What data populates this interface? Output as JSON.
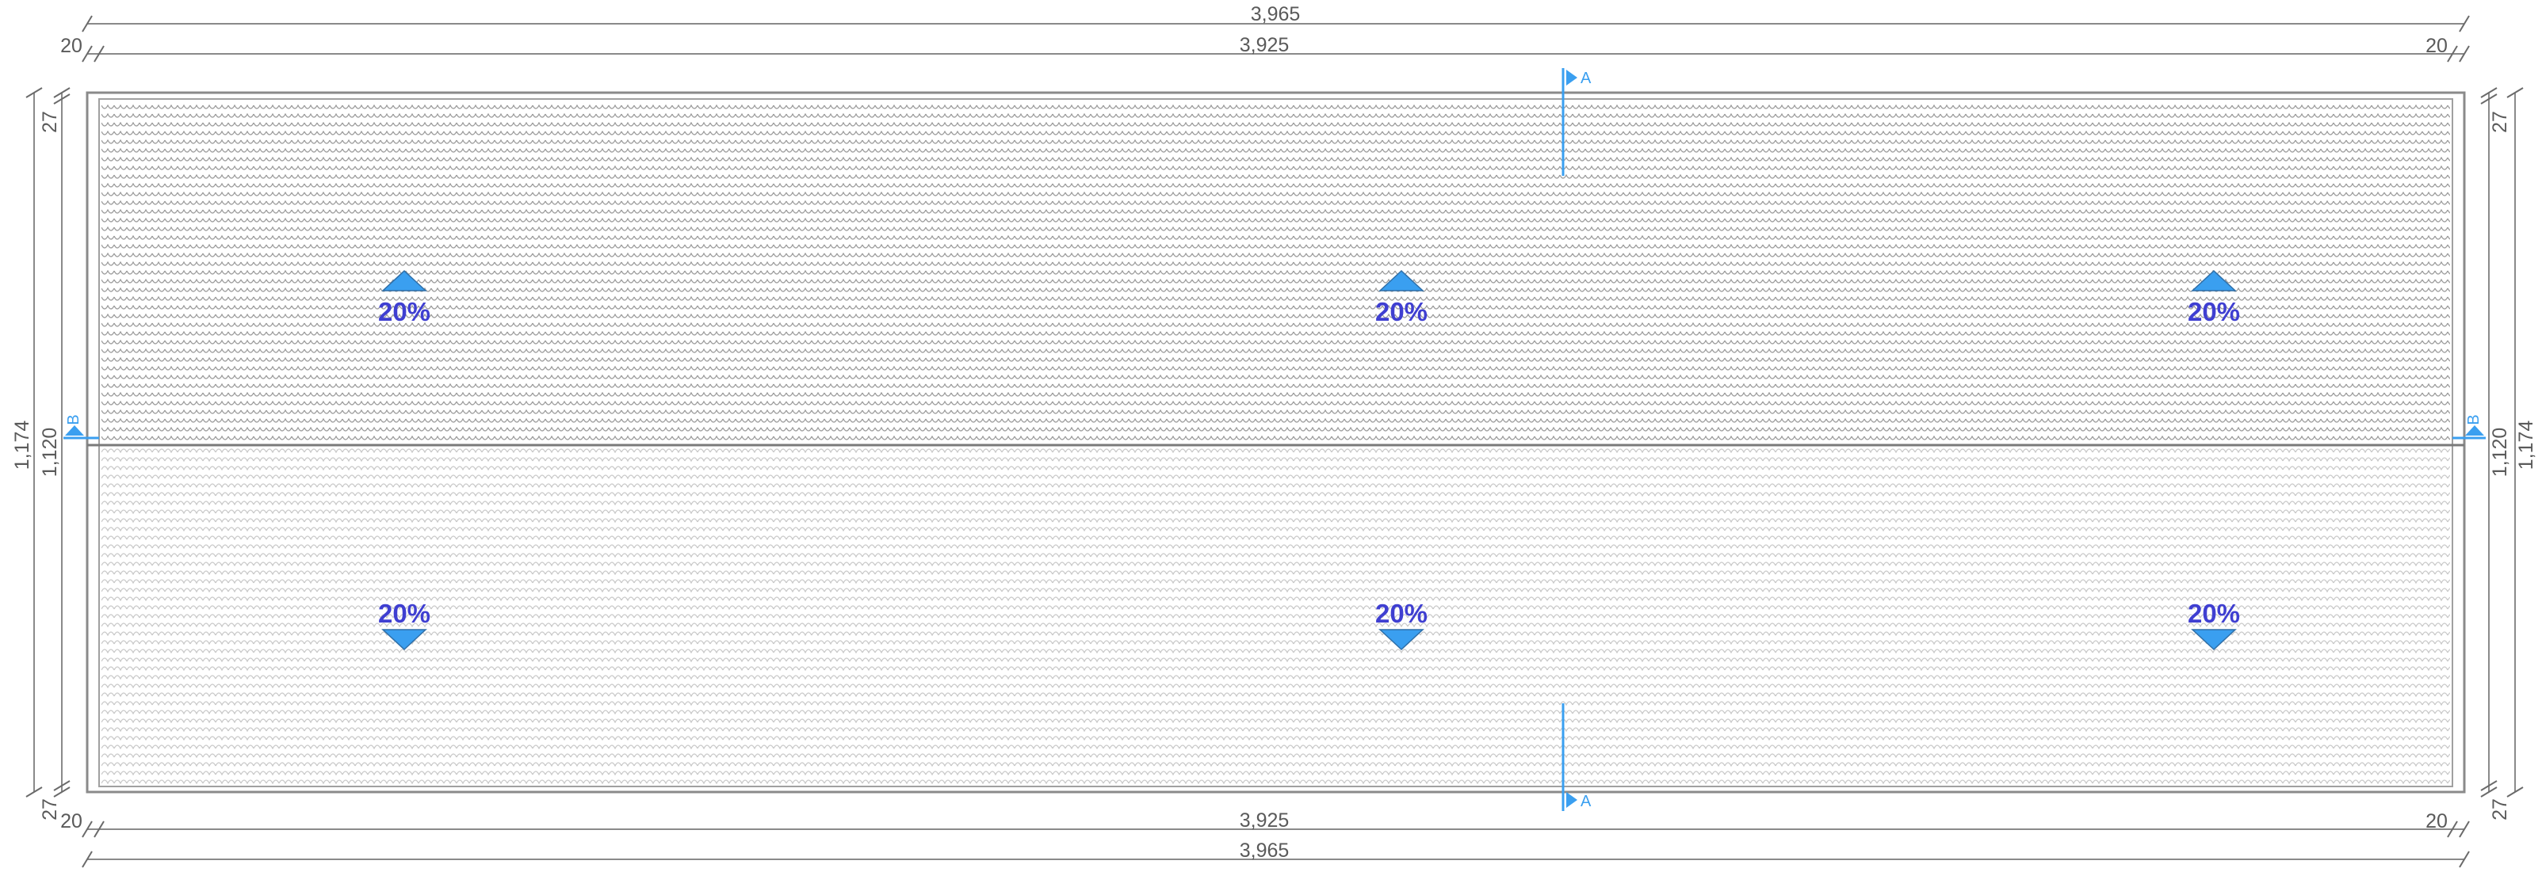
{
  "drawing": {
    "type": "roof-plan",
    "colors": {
      "dimension": "#8a8a8a",
      "dimension_text": "#5a5a5a",
      "slope_text": "#3f3fd1",
      "arrow_fill": "#3a9ff0",
      "tile_upper": "#9a9a9a",
      "tile_lower": "#c8c8c8"
    },
    "dimensions": {
      "overall_width": "3,965",
      "inner_width": "3,925",
      "edge_left": "20",
      "edge_right": "20",
      "overall_height": "1,174",
      "inner_height": "1,120",
      "edge_top": "27",
      "edge_bottom": "27"
    },
    "sections": {
      "a_top": "A",
      "a_bottom": "A",
      "b_left": "B",
      "b_right": "B"
    },
    "slopes": {
      "upper": [
        {
          "label": "20%",
          "direction": "up"
        },
        {
          "label": "20%",
          "direction": "up"
        },
        {
          "label": "20%",
          "direction": "up"
        }
      ],
      "lower": [
        {
          "label": "20%",
          "direction": "down"
        },
        {
          "label": "20%",
          "direction": "down"
        },
        {
          "label": "20%",
          "direction": "down"
        }
      ]
    }
  }
}
